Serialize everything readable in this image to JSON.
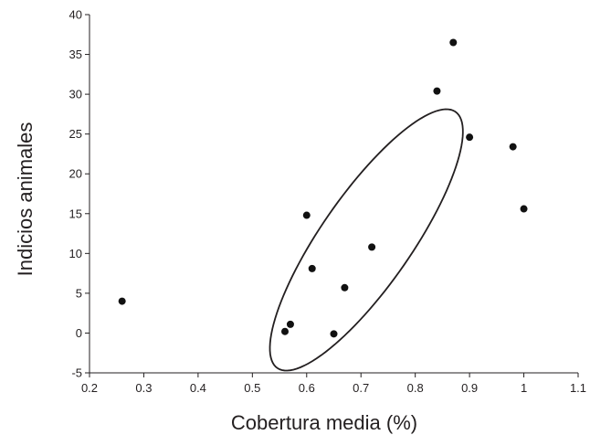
{
  "chart_data": {
    "type": "scatter",
    "xlabel": "Cobertura media (%)",
    "ylabel": "Indicios animales",
    "xlim": [
      0.2,
      1.1
    ],
    "ylim": [
      -5,
      40
    ],
    "x_ticks": [
      "0.2",
      "0.3",
      "0.4",
      "0.5",
      "0.6",
      "0.7",
      "0.8",
      "0.9",
      "1",
      "1.1"
    ],
    "y_ticks": [
      "-5",
      "0",
      "5",
      "10",
      "15",
      "20",
      "25",
      "30",
      "35",
      "40"
    ],
    "grid": false,
    "point_color": "#111111",
    "points": [
      {
        "x": 0.26,
        "y": 4.0
      },
      {
        "x": 0.56,
        "y": 0.2
      },
      {
        "x": 0.57,
        "y": 1.1
      },
      {
        "x": 0.6,
        "y": 14.8
      },
      {
        "x": 0.61,
        "y": 8.1
      },
      {
        "x": 0.65,
        "y": -0.1
      },
      {
        "x": 0.67,
        "y": 5.7
      },
      {
        "x": 0.72,
        "y": 10.8
      },
      {
        "x": 0.84,
        "y": 30.4
      },
      {
        "x": 0.87,
        "y": 36.5
      },
      {
        "x": 0.9,
        "y": 24.6
      },
      {
        "x": 0.98,
        "y": 23.4
      },
      {
        "x": 1.0,
        "y": 15.6
      }
    ],
    "confidence_ellipse": {
      "center": {
        "x": 0.71,
        "y": 11.7
      },
      "semi_major": {
        "dx": 0.17,
        "dy": 15.7
      },
      "semi_minor": {
        "dx": 0.052,
        "dy": -4.8
      }
    }
  }
}
